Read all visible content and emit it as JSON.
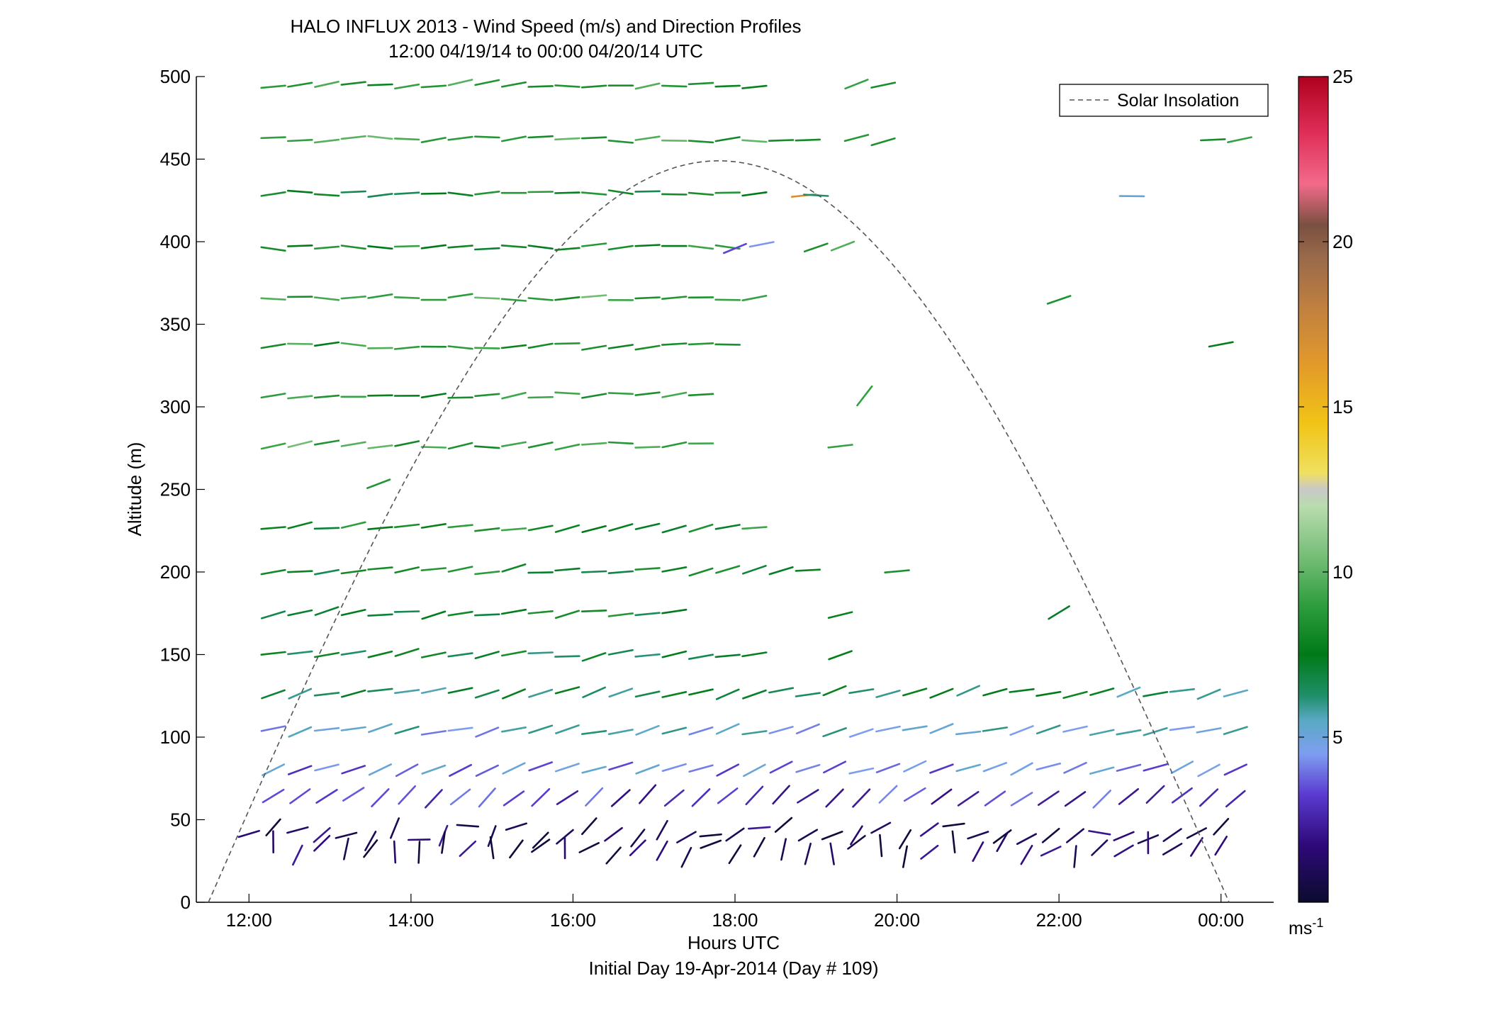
{
  "title_line1": "HALO INFLUX 2013 - Wind Speed (m/s) and Direction Profiles",
  "title_line2": "12:00 04/19/14 to 00:00 04/20/14  UTC",
  "xlabel": "Hours UTC",
  "xlabel2": "Initial Day 19-Apr-2014 (Day # 109)",
  "ylabel": "Altitude (m)",
  "legend_label": "Solar Insolation",
  "colorbar_unit": "ms",
  "colorbar_unit_sup": "-1",
  "x_tick_labels": [
    "12:00",
    "14:00",
    "16:00",
    "18:00",
    "20:00",
    "22:00",
    "00:00"
  ],
  "y_tick_labels": [
    "0",
    "50",
    "100",
    "150",
    "200",
    "250",
    "300",
    "350",
    "400",
    "450",
    "500"
  ],
  "colorbar_tick_labels": [
    "5",
    "10",
    "15",
    "20",
    "25"
  ],
  "chart_data": {
    "type": "scatter",
    "xlabel": "Hours UTC",
    "ylabel": "Altitude (m)",
    "x_unit": "hours UTC since 12:00 04/19/14",
    "xlim": [
      -0.65,
      12.65
    ],
    "ylim": [
      0,
      500
    ],
    "x_ticks": [
      0,
      2,
      4,
      6,
      8,
      10,
      12
    ],
    "y_ticks": [
      0,
      50,
      100,
      150,
      200,
      250,
      300,
      350,
      400,
      450,
      500
    ],
    "colorbar": {
      "label": "ms-1",
      "range": [
        0,
        25
      ],
      "ticks": [
        5,
        10,
        15,
        20,
        25
      ]
    },
    "legend": {
      "placement": "top-right",
      "entries": [
        "Solar Insolation"
      ]
    },
    "solar_insolation_curve": {
      "start_hour": -0.5,
      "end_hour": 12.1,
      "peak_hour": 5.8,
      "peak_altitude": 449
    },
    "altitude_levels": [
      {
        "altitude": 495,
        "speed": 8.5,
        "dir_deg": 85,
        "t_start": 0.3,
        "t_end": 6.5
      },
      {
        "altitude": 495,
        "speed": 8.5,
        "dir_deg": 70,
        "t_start": 7.5,
        "t_end": 8.0
      },
      {
        "altitude": 462,
        "speed": 9.0,
        "dir_deg": 88,
        "t_start": 0.3,
        "t_end": 7.0
      },
      {
        "altitude": 462,
        "speed": 9.0,
        "dir_deg": 80,
        "t_start": 7.5,
        "t_end": 8.0
      },
      {
        "altitude": 462,
        "speed": 9.0,
        "dir_deg": 85,
        "t_start": 11.9,
        "t_end": 12.3
      },
      {
        "altitude": 429,
        "speed": 7.5,
        "dir_deg": 90,
        "t_start": 0.3,
        "t_end": 6.5
      },
      {
        "altitude": 429,
        "speed": 16.5,
        "dir_deg": 75,
        "t_start": 6.85,
        "t_end": 6.85
      },
      {
        "altitude": 429,
        "speed": 7.0,
        "dir_deg": 90,
        "t_start": 7.0,
        "t_end": 7.3
      },
      {
        "altitude": 429,
        "speed": 5.5,
        "dir_deg": 90,
        "t_start": 10.9,
        "t_end": 11.2
      },
      {
        "altitude": 397,
        "speed": 8.0,
        "dir_deg": 90,
        "t_start": 0.3,
        "t_end": 6.0
      },
      {
        "altitude": 397,
        "speed": 4.0,
        "dir_deg": 75,
        "t_start": 6.0,
        "t_end": 6.6
      },
      {
        "altitude": 397,
        "speed": 8.5,
        "dir_deg": 75,
        "t_start": 7.0,
        "t_end": 7.5
      },
      {
        "altitude": 366,
        "speed": 9.0,
        "dir_deg": 88,
        "t_start": 0.3,
        "t_end": 6.5
      },
      {
        "altitude": 366,
        "speed": 8.0,
        "dir_deg": 80,
        "t_start": 10.0,
        "t_end": 10.3
      },
      {
        "altitude": 337,
        "speed": 8.5,
        "dir_deg": 88,
        "t_start": 0.3,
        "t_end": 6.2
      },
      {
        "altitude": 337,
        "speed": 8.0,
        "dir_deg": 80,
        "t_start": 12.0,
        "t_end": 12.3
      },
      {
        "altitude": 307,
        "speed": 8.5,
        "dir_deg": 85,
        "t_start": 0.3,
        "t_end": 5.9
      },
      {
        "altitude": 307,
        "speed": 9.0,
        "dir_deg": 45,
        "t_start": 7.6,
        "t_end": 7.6
      },
      {
        "altitude": 277,
        "speed": 9.0,
        "dir_deg": 85,
        "t_start": 0.3,
        "t_end": 5.9
      },
      {
        "altitude": 277,
        "speed": 8.0,
        "dir_deg": 75,
        "t_start": 7.3,
        "t_end": 7.6
      },
      {
        "altitude": 254,
        "speed": 8.0,
        "dir_deg": 75,
        "t_start": 1.6,
        "t_end": 1.9
      },
      {
        "altitude": 227,
        "speed": 8.0,
        "dir_deg": 80,
        "t_start": 0.3,
        "t_end": 6.5
      },
      {
        "altitude": 201,
        "speed": 7.5,
        "dir_deg": 80,
        "t_start": 0.3,
        "t_end": 7.0
      },
      {
        "altitude": 201,
        "speed": 8.5,
        "dir_deg": 80,
        "t_start": 8.0,
        "t_end": 8.2
      },
      {
        "altitude": 175,
        "speed": 7.5,
        "dir_deg": 80,
        "t_start": 0.3,
        "t_end": 5.5
      },
      {
        "altitude": 175,
        "speed": 8.0,
        "dir_deg": 75,
        "t_start": 7.3,
        "t_end": 7.5
      },
      {
        "altitude": 175,
        "speed": 7.5,
        "dir_deg": 65,
        "t_start": 10.0,
        "t_end": 10.2
      },
      {
        "altitude": 150,
        "speed": 7.0,
        "dir_deg": 80,
        "t_start": 0.3,
        "t_end": 6.5
      },
      {
        "altitude": 150,
        "speed": 8.0,
        "dir_deg": 75,
        "t_start": 7.3,
        "t_end": 7.5
      },
      {
        "altitude": 127,
        "speed": 6.5,
        "dir_deg": 75,
        "t_start": 0.3,
        "t_end": 12.3
      },
      {
        "altitude": 104,
        "speed": 5.0,
        "dir_deg": 75,
        "t_start": 0.3,
        "t_end": 12.3
      },
      {
        "altitude": 81,
        "speed": 4.0,
        "dir_deg": 70,
        "t_start": 0.3,
        "t_end": 12.3
      },
      {
        "altitude": 64,
        "speed": 3.0,
        "dir_deg": 50,
        "t_start": 0.3,
        "t_end": 12.3
      },
      {
        "altitude": 42,
        "speed": 1.0,
        "dir_deg": 60,
        "t_start": 0.0,
        "t_end": 12.1
      },
      {
        "altitude": 32,
        "speed": 1.0,
        "dir_deg": 30,
        "t_start": 0.3,
        "t_end": 12.1
      }
    ]
  }
}
